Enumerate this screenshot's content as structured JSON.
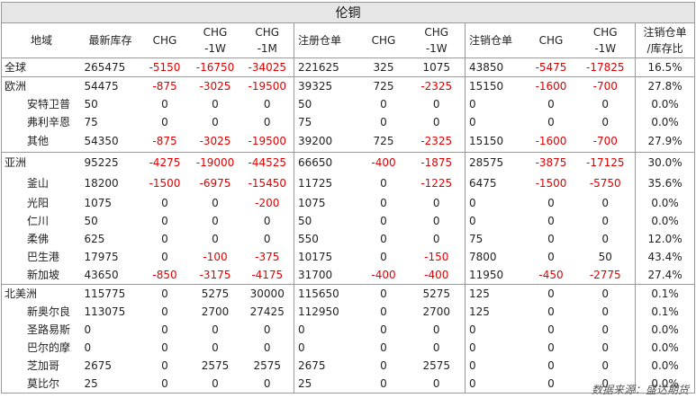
{
  "title": "伦铜",
  "headers": [
    "地域",
    "最新库存",
    "CHG",
    "CHG\n-1W",
    "CHG\n-1M",
    "注册仓单",
    "CHG",
    "CHG\n-1W",
    "注销仓单",
    "CHG",
    "CHG\n-1W",
    "注销仓单\n/库存比"
  ],
  "rows": [
    {
      "name": "全球",
      "cells": [
        "265475",
        "-5150",
        "-16750",
        "-34025",
        "221625",
        "325",
        "1075",
        "43850",
        "-5475",
        "-17825",
        "16.5%"
      ]
    },
    {
      "name": "欧洲",
      "cells": [
        "54475",
        "-875",
        "-3025",
        "-19500",
        "39325",
        "725",
        "-2325",
        "15150",
        "-1600",
        "-700",
        "27.8%"
      ]
    },
    {
      "name": "安特卫普",
      "cells": [
        "50",
        "0",
        "0",
        "0",
        "50",
        "0",
        "0",
        "0",
        "0",
        "0",
        "0.0%"
      ]
    },
    {
      "name": "弗利辛恩",
      "cells": [
        "75",
        "0",
        "0",
        "0",
        "75",
        "0",
        "0",
        "0",
        "0",
        "0",
        "0.0%"
      ]
    },
    {
      "name": "其他",
      "cells": [
        "54350",
        "-875",
        "-3025",
        "-19500",
        "39200",
        "725",
        "-2325",
        "15150",
        "-1600",
        "-700",
        "27.9%"
      ]
    },
    {
      "name": "亚洲",
      "cells": [
        "95225",
        "-4275",
        "-19000",
        "-44525",
        "66650",
        "-400",
        "-1875",
        "28575",
        "-3875",
        "-17125",
        "30.0%"
      ]
    },
    {
      "name": "釜山",
      "cells": [
        "18200",
        "-1500",
        "-6975",
        "-15450",
        "11725",
        "0",
        "-1225",
        "6475",
        "-1500",
        "-5750",
        "35.6%"
      ]
    },
    {
      "name": "光阳",
      "cells": [
        "1075",
        "0",
        "0",
        "-200",
        "1075",
        "0",
        "0",
        "0",
        "0",
        "0",
        "0.0%"
      ]
    },
    {
      "name": "仁川",
      "cells": [
        "50",
        "0",
        "0",
        "0",
        "50",
        "0",
        "0",
        "0",
        "0",
        "0",
        "0.0%"
      ]
    },
    {
      "name": "柔佛",
      "cells": [
        "625",
        "0",
        "0",
        "0",
        "550",
        "0",
        "0",
        "75",
        "0",
        "0",
        "12.0%"
      ]
    },
    {
      "name": "巴生港",
      "cells": [
        "17975",
        "0",
        "-100",
        "-375",
        "10175",
        "0",
        "-150",
        "7800",
        "0",
        "50",
        "43.4%"
      ]
    },
    {
      "name": "新加坡",
      "cells": [
        "43650",
        "-850",
        "-3175",
        "-4175",
        "31700",
        "-400",
        "-400",
        "11950",
        "-450",
        "-2775",
        "27.4%"
      ]
    },
    {
      "name": "北美洲",
      "cells": [
        "115775",
        "0",
        "5275",
        "30000",
        "115650",
        "0",
        "5275",
        "125",
        "0",
        "0",
        "0.1%"
      ]
    },
    {
      "name": "新奥尔良",
      "cells": [
        "113075",
        "0",
        "2700",
        "27425",
        "112950",
        "0",
        "2700",
        "125",
        "0",
        "0",
        "0.1%"
      ]
    },
    {
      "name": "圣路易斯",
      "cells": [
        "0",
        "0",
        "0",
        "0",
        "0",
        "0",
        "0",
        "0",
        "0",
        "0",
        "0.0%"
      ]
    },
    {
      "name": "巴尔的摩",
      "cells": [
        "0",
        "0",
        "0",
        "0",
        "0",
        "0",
        "0",
        "0",
        "0",
        "0",
        "0.0%"
      ]
    },
    {
      "name": "芝加哥",
      "cells": [
        "2675",
        "0",
        "2575",
        "2575",
        "2675",
        "0",
        "2575",
        "0",
        "0",
        "0",
        "0.0%"
      ]
    },
    {
      "name": "莫比尔",
      "cells": [
        "25",
        "0",
        "0",
        "0",
        "25",
        "0",
        "0",
        "0",
        "0",
        "0",
        "0.0%"
      ]
    }
  ],
  "source": "数据来源：盛达期货",
  "colors": {
    "negative": "#e00000",
    "title_bg": "#e6e6e6",
    "border": "#9a9a9a"
  }
}
